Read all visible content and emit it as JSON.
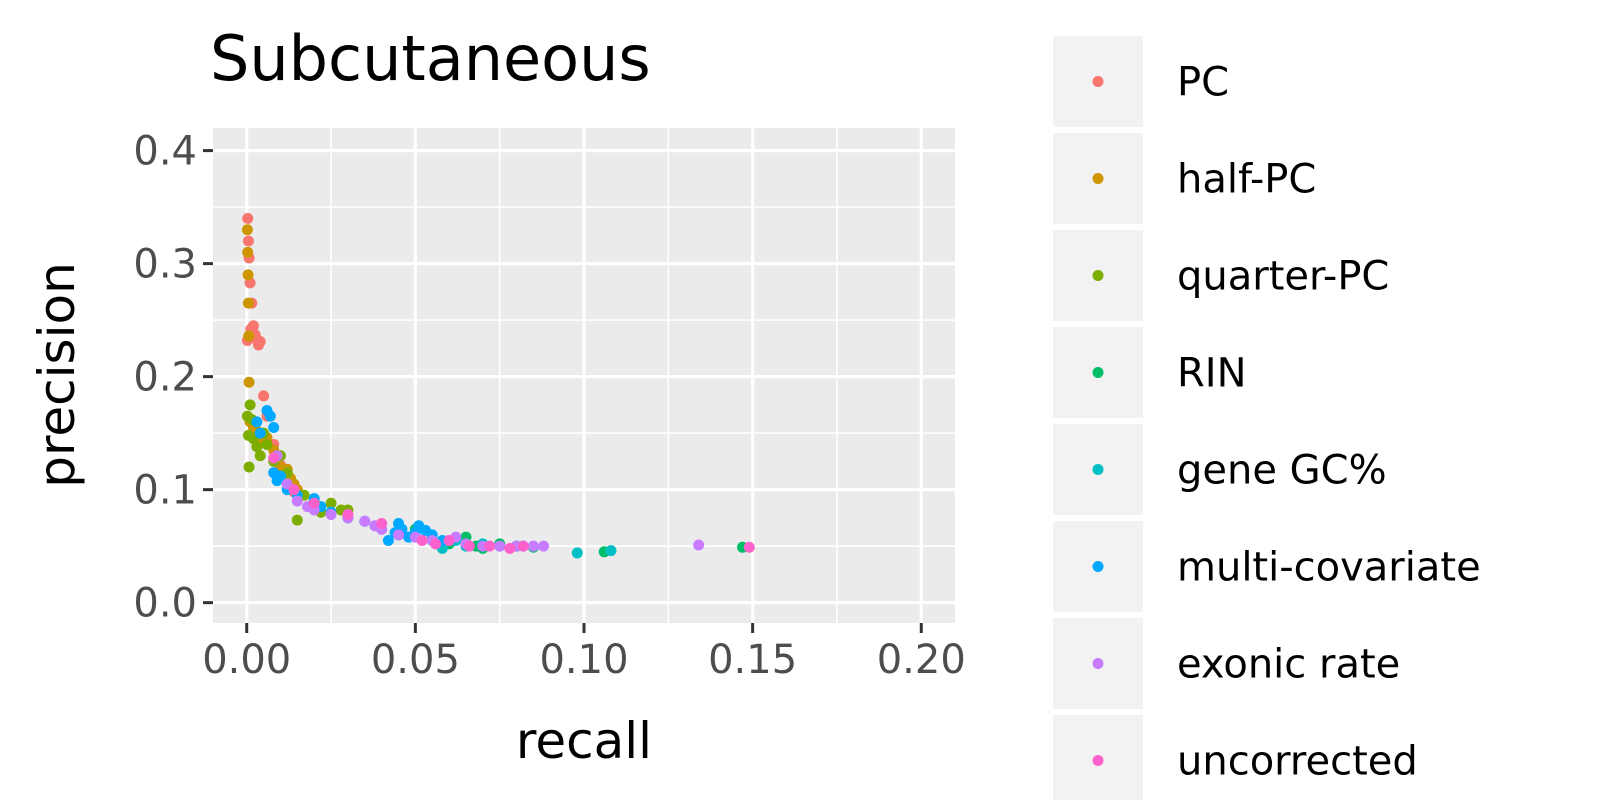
{
  "chart_data": {
    "type": "scatter",
    "title": "Subcutaneous",
    "xlabel": "recall",
    "ylabel": "precision",
    "xlim": [
      -0.01,
      0.21
    ],
    "ylim": [
      -0.018,
      0.42
    ],
    "xticks": [
      0.0,
      0.05,
      0.1,
      0.15,
      0.2
    ],
    "yticks": [
      0.0,
      0.1,
      0.2,
      0.3,
      0.4
    ],
    "xtick_labels": [
      "0.00",
      "0.05",
      "0.10",
      "0.15",
      "0.20"
    ],
    "ytick_labels": [
      "0.0",
      "0.1",
      "0.2",
      "0.3",
      "0.4"
    ],
    "grid": true,
    "legend_position": "right",
    "series": [
      {
        "name": "PC",
        "color": "#F8766D",
        "points": [
          [
            0.0003,
            0.34
          ],
          [
            0.0005,
            0.32
          ],
          [
            0.0007,
            0.305
          ],
          [
            0.001,
            0.283
          ],
          [
            0.0015,
            0.265
          ],
          [
            0.002,
            0.245
          ],
          [
            0.0025,
            0.237
          ],
          [
            0.003,
            0.233
          ],
          [
            0.0035,
            0.228
          ],
          [
            0.004,
            0.231
          ],
          [
            0.005,
            0.183
          ],
          [
            0.006,
            0.165
          ],
          [
            0.008,
            0.14
          ],
          [
            0.01,
            0.122
          ],
          [
            0.012,
            0.108
          ],
          [
            0.014,
            0.098
          ],
          [
            0.0002,
            0.232
          ],
          [
            0.0012,
            0.242
          ]
        ]
      },
      {
        "name": "half-PC",
        "color": "#CD9600",
        "points": [
          [
            0.0002,
            0.33
          ],
          [
            0.0003,
            0.31
          ],
          [
            0.0004,
            0.29
          ],
          [
            0.0005,
            0.265
          ],
          [
            0.0006,
            0.236
          ],
          [
            0.0007,
            0.195
          ],
          [
            0.001,
            0.16
          ],
          [
            0.002,
            0.155
          ],
          [
            0.003,
            0.152
          ],
          [
            0.004,
            0.148
          ],
          [
            0.005,
            0.142
          ],
          [
            0.006,
            0.146
          ],
          [
            0.008,
            0.135
          ],
          [
            0.01,
            0.12
          ],
          [
            0.012,
            0.118
          ],
          [
            0.013,
            0.11
          ],
          [
            0.014,
            0.105
          ],
          [
            0.015,
            0.1
          ]
        ]
      },
      {
        "name": "quarter-PC",
        "color": "#7CAE00",
        "points": [
          [
            0.0002,
            0.165
          ],
          [
            0.0005,
            0.148
          ],
          [
            0.0007,
            0.12
          ],
          [
            0.001,
            0.175
          ],
          [
            0.0015,
            0.162
          ],
          [
            0.002,
            0.145
          ],
          [
            0.003,
            0.138
          ],
          [
            0.004,
            0.13
          ],
          [
            0.005,
            0.15
          ],
          [
            0.006,
            0.14
          ],
          [
            0.008,
            0.125
          ],
          [
            0.01,
            0.13
          ],
          [
            0.012,
            0.115
          ],
          [
            0.015,
            0.073
          ],
          [
            0.017,
            0.095
          ],
          [
            0.02,
            0.09
          ],
          [
            0.022,
            0.08
          ],
          [
            0.025,
            0.088
          ],
          [
            0.028,
            0.082
          ],
          [
            0.03,
            0.082
          ]
        ]
      },
      {
        "name": "RIN",
        "color": "#00BE67",
        "points": [
          [
            0.05,
            0.065
          ],
          [
            0.055,
            0.056
          ],
          [
            0.06,
            0.052
          ],
          [
            0.065,
            0.058
          ],
          [
            0.068,
            0.05
          ],
          [
            0.07,
            0.048
          ],
          [
            0.075,
            0.052
          ],
          [
            0.08,
            0.05
          ],
          [
            0.085,
            0.049
          ],
          [
            0.106,
            0.045
          ],
          [
            0.147,
            0.049
          ]
        ]
      },
      {
        "name": "gene GC%",
        "color": "#00BFC4",
        "points": [
          [
            0.045,
            0.06
          ],
          [
            0.05,
            0.058
          ],
          [
            0.055,
            0.055
          ],
          [
            0.058,
            0.048
          ],
          [
            0.062,
            0.055
          ],
          [
            0.065,
            0.05
          ],
          [
            0.07,
            0.052
          ],
          [
            0.075,
            0.05
          ],
          [
            0.08,
            0.05
          ],
          [
            0.098,
            0.044
          ],
          [
            0.108,
            0.046
          ]
        ]
      },
      {
        "name": "multi-covariate",
        "color": "#00A9FF",
        "points": [
          [
            0.003,
            0.16
          ],
          [
            0.004,
            0.15
          ],
          [
            0.006,
            0.17
          ],
          [
            0.007,
            0.165
          ],
          [
            0.008,
            0.155
          ],
          [
            0.008,
            0.115
          ],
          [
            0.009,
            0.108
          ],
          [
            0.01,
            0.112
          ],
          [
            0.012,
            0.1
          ],
          [
            0.015,
            0.095
          ],
          [
            0.02,
            0.092
          ],
          [
            0.022,
            0.085
          ],
          [
            0.025,
            0.08
          ],
          [
            0.03,
            0.075
          ],
          [
            0.035,
            0.072
          ],
          [
            0.04,
            0.065
          ],
          [
            0.042,
            0.055
          ],
          [
            0.044,
            0.062
          ],
          [
            0.045,
            0.07
          ],
          [
            0.046,
            0.065
          ],
          [
            0.048,
            0.058
          ],
          [
            0.05,
            0.062
          ],
          [
            0.051,
            0.068
          ],
          [
            0.053,
            0.064
          ],
          [
            0.055,
            0.06
          ],
          [
            0.058,
            0.055
          ],
          [
            0.082,
            0.05
          ]
        ]
      },
      {
        "name": "exonic rate",
        "color": "#C77CFF",
        "points": [
          [
            0.009,
            0.13
          ],
          [
            0.012,
            0.105
          ],
          [
            0.015,
            0.09
          ],
          [
            0.018,
            0.085
          ],
          [
            0.02,
            0.082
          ],
          [
            0.025,
            0.078
          ],
          [
            0.03,
            0.075
          ],
          [
            0.035,
            0.072
          ],
          [
            0.038,
            0.068
          ],
          [
            0.04,
            0.065
          ],
          [
            0.045,
            0.06
          ],
          [
            0.05,
            0.058
          ],
          [
            0.055,
            0.055
          ],
          [
            0.06,
            0.055
          ],
          [
            0.062,
            0.058
          ],
          [
            0.065,
            0.052
          ],
          [
            0.07,
            0.05
          ],
          [
            0.075,
            0.05
          ],
          [
            0.08,
            0.05
          ],
          [
            0.085,
            0.05
          ],
          [
            0.088,
            0.05
          ],
          [
            0.134,
            0.051
          ]
        ]
      },
      {
        "name": "uncorrected",
        "color": "#FF61CC",
        "points": [
          [
            0.008,
            0.128
          ],
          [
            0.014,
            0.1
          ],
          [
            0.02,
            0.088
          ],
          [
            0.03,
            0.078
          ],
          [
            0.04,
            0.07
          ],
          [
            0.052,
            0.055
          ],
          [
            0.056,
            0.052
          ],
          [
            0.06,
            0.055
          ],
          [
            0.066,
            0.05
          ],
          [
            0.072,
            0.05
          ],
          [
            0.078,
            0.048
          ],
          [
            0.082,
            0.05
          ],
          [
            0.149,
            0.049
          ]
        ]
      }
    ]
  }
}
